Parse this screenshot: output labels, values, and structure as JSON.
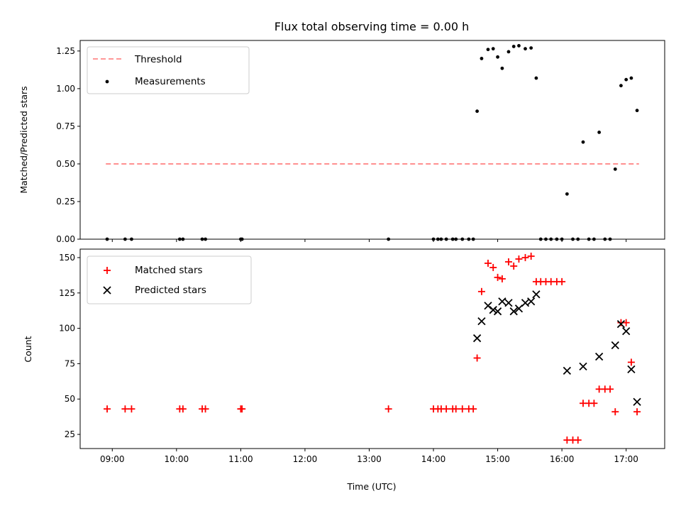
{
  "figure": {
    "title": "Flux total observing time = 0.00 h",
    "xlabel": "Time (UTC)"
  },
  "chart_data": [
    {
      "type": "scatter",
      "ylabel": "Matched/Predicted stars",
      "xlim": [
        8.5,
        17.6
      ],
      "ylim": [
        0,
        1.32
      ],
      "y_ticks": [
        0.0,
        0.25,
        0.5,
        0.75,
        1.0,
        1.25
      ],
      "y_tick_labels": [
        "0.00",
        "0.25",
        "0.50",
        "0.75",
        "1.00",
        "1.25"
      ],
      "grid": false,
      "legend_position": "upper-left",
      "threshold": {
        "name": "Threshold",
        "color": "#ff7777",
        "y": 0.5,
        "x_range": [
          8.9,
          17.2
        ]
      },
      "series": [
        {
          "name": "Measurements",
          "color": "#000000",
          "marker": "dot",
          "x": [
            8.92,
            9.2,
            9.3,
            10.05,
            10.1,
            10.4,
            10.45,
            11.0,
            11.02,
            13.3,
            14.0,
            14.07,
            14.12,
            14.2,
            14.3,
            14.35,
            14.45,
            14.55,
            14.62,
            14.68,
            14.75,
            14.85,
            14.93,
            15.0,
            15.07,
            15.17,
            15.25,
            15.33,
            15.43,
            15.52,
            15.6,
            15.67,
            15.75,
            15.83,
            15.92,
            16.0,
            16.08,
            16.17,
            16.25,
            16.33,
            16.42,
            16.5,
            16.58,
            16.67,
            16.75,
            16.83,
            16.92,
            17.0,
            17.08,
            17.17
          ],
          "y": [
            0,
            0,
            0,
            0,
            0,
            0,
            0,
            0,
            0,
            0,
            0,
            0,
            0,
            0,
            0,
            0,
            0,
            0,
            0,
            0.85,
            1.2,
            1.26,
            1.265,
            1.21,
            1.135,
            1.245,
            1.28,
            1.285,
            1.265,
            1.27,
            1.07,
            0,
            0,
            0,
            0,
            0,
            0.3,
            0,
            0,
            0.645,
            0,
            0,
            0.71,
            0,
            0,
            0.465,
            1.02,
            1.06,
            1.07,
            0.855
          ]
        }
      ]
    },
    {
      "type": "scatter",
      "ylabel": "Count",
      "xlim": [
        8.5,
        17.6
      ],
      "ylim": [
        15,
        156
      ],
      "y_ticks": [
        25,
        50,
        75,
        100,
        125,
        150
      ],
      "y_tick_labels": [
        "25",
        "50",
        "75",
        "100",
        "125",
        "150"
      ],
      "x_ticks": [
        9,
        10,
        11,
        12,
        13,
        14,
        15,
        16,
        17
      ],
      "x_tick_labels": [
        "09:00",
        "10:00",
        "11:00",
        "12:00",
        "13:00",
        "14:00",
        "15:00",
        "16:00",
        "17:00"
      ],
      "grid": false,
      "legend_position": "upper-left",
      "series": [
        {
          "name": "Matched stars",
          "color": "#ff0000",
          "marker": "plus",
          "x": [
            8.92,
            9.2,
            9.3,
            10.05,
            10.1,
            10.4,
            10.45,
            11.0,
            11.02,
            13.3,
            14.0,
            14.07,
            14.12,
            14.2,
            14.3,
            14.35,
            14.45,
            14.55,
            14.62,
            14.68,
            14.75,
            14.85,
            14.93,
            15.0,
            15.07,
            15.17,
            15.25,
            15.33,
            15.43,
            15.52,
            15.6,
            15.67,
            15.75,
            15.83,
            15.92,
            16.0,
            16.08,
            16.17,
            16.25,
            16.33,
            16.42,
            16.5,
            16.58,
            16.67,
            16.75,
            16.83,
            16.92,
            17.0,
            17.08,
            17.17
          ],
          "y": [
            43,
            43,
            43,
            43,
            43,
            43,
            43,
            43,
            43,
            43,
            43,
            43,
            43,
            43,
            43,
            43,
            43,
            43,
            43,
            79,
            126,
            146,
            143,
            136,
            135,
            147,
            144,
            149,
            150,
            151,
            133,
            133,
            133,
            133,
            133,
            133,
            21,
            21,
            21,
            47,
            47,
            47,
            57,
            57,
            57,
            41,
            104,
            104,
            76,
            41
          ]
        },
        {
          "name": "Predicted stars",
          "color": "#000000",
          "marker": "cross",
          "x": [
            14.68,
            14.75,
            14.85,
            14.93,
            15.0,
            15.07,
            15.17,
            15.25,
            15.33,
            15.43,
            15.52,
            15.6,
            16.08,
            16.33,
            16.58,
            16.83,
            16.92,
            17.0,
            17.08,
            17.17
          ],
          "y": [
            93,
            105,
            116,
            113,
            112,
            119,
            118,
            112,
            114,
            118,
            119,
            124,
            70,
            73,
            80,
            88,
            103,
            98,
            71,
            48
          ]
        }
      ]
    }
  ]
}
